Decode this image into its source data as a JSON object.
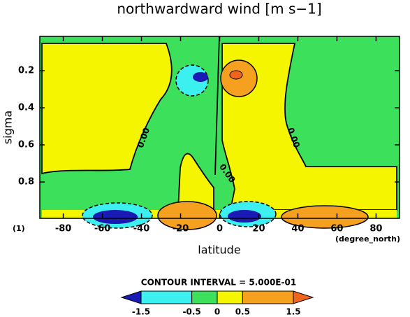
{
  "chart_data": {
    "type": "contour",
    "title": "northwardward wind [m s−1]",
    "x_label": "latitude",
    "x_units": "(degree_north)",
    "y_label": "sigma",
    "y_lower_label": "(1)",
    "xlim": [
      -92,
      92
    ],
    "xticks": [
      -80,
      -60,
      -40,
      -20,
      0,
      20,
      40,
      60,
      80
    ],
    "ylim": [
      0.015,
      0.996
    ],
    "y_inverted": true,
    "yticks": [
      0.2,
      0.4,
      0.6,
      0.8
    ],
    "contour_labels": [
      "0.00",
      "0.00",
      "0.00"
    ],
    "colorbar": {
      "title": "CONTOUR INTERVAL = 5.000E-01",
      "levels": [
        -1.5,
        -0.5,
        0,
        0.5,
        1.5
      ],
      "colors": [
        "#1a1ab4",
        "#3cf0f0",
        "#3ce05a",
        "#f5f500",
        "#f5a01e",
        "#f0641e"
      ]
    }
  }
}
